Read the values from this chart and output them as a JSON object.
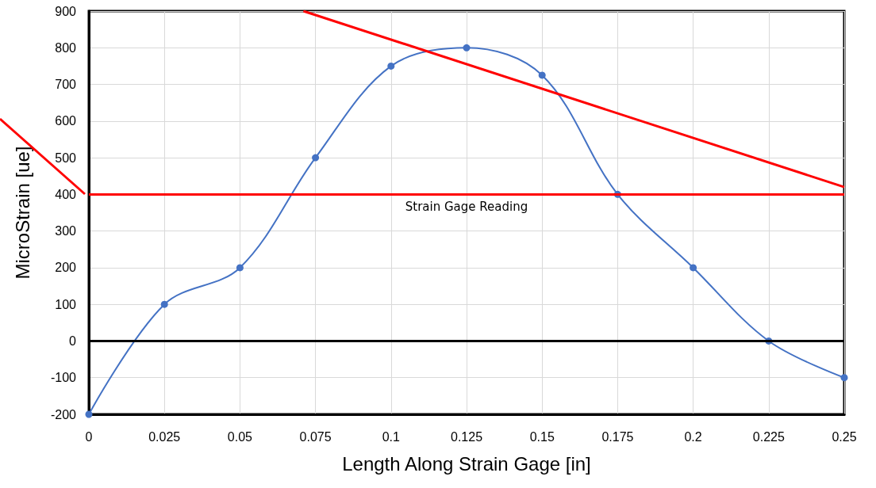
{
  "chart_data": {
    "type": "line",
    "xlabel": "Length Along Strain Gage [in]",
    "ylabel": "MicroStrain [ue]",
    "series": [
      {
        "color": "#4472c4",
        "x": [
          0,
          0.025,
          0.05,
          0.075,
          0.1,
          0.125,
          0.15,
          0.175,
          0.2,
          0.225,
          0.25
        ],
        "values": [
          -200,
          100,
          200,
          500,
          750,
          800,
          725,
          400,
          200,
          0,
          -100
        ],
        "marker": "circle"
      },
      {
        "type": "line",
        "color": "#ff0000",
        "x": [
          0.071,
          0.25
        ],
        "values": [
          900,
          420
        ],
        "marker": "none"
      }
    ],
    "xlim": [
      0,
      0.25
    ],
    "xticks": [
      0,
      0.025,
      0.05,
      0.075,
      0.1,
      0.125,
      0.15,
      0.175,
      0.2,
      0.225,
      0.25
    ],
    "ylim": [
      -200,
      900
    ],
    "yticks": [
      -200,
      -100,
      0,
      100,
      200,
      300,
      400,
      500,
      600,
      700,
      800,
      900
    ],
    "ref_lines": [
      {
        "axis": "y",
        "value": 400,
        "label": "Strain Gage Reading",
        "color": "#ff0000"
      },
      {
        "axis": "y",
        "value": 0,
        "label": null,
        "color": "#000000"
      }
    ],
    "grid": true
  }
}
